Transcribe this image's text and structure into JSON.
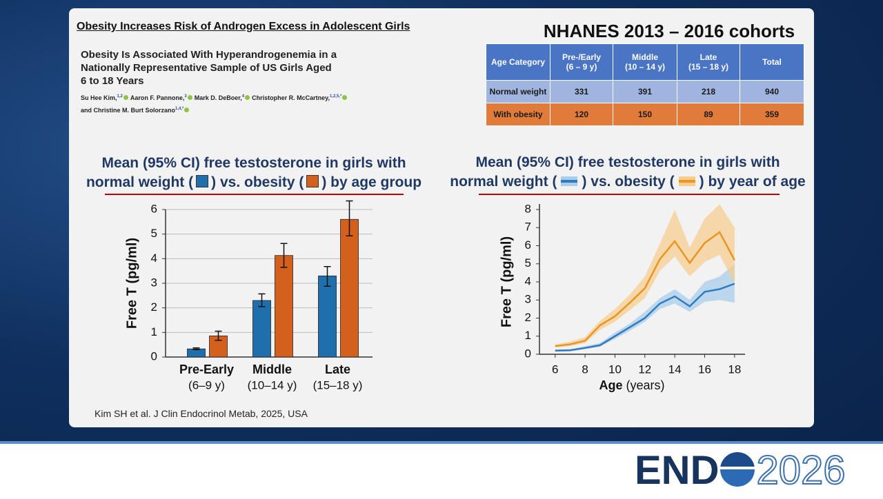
{
  "header": {
    "headline": "Obesity Increases Risk of Androgen Excess in Adolescent Girls",
    "paper_title": [
      "Obesity Is Associated With Hyperandrogenemia in a",
      "Nationally Representative Sample of US Girls Aged",
      "6 to 18 Years"
    ],
    "authors": [
      {
        "name": "Su Hee Kim,",
        "sup": "1,2"
      },
      {
        "name": "Aaron F. Pannone,",
        "sup": "3"
      },
      {
        "name": "Mark D. DeBoer,",
        "sup": "4"
      },
      {
        "name": "Christopher R. McCartney,",
        "sup": "1,2,5,*"
      },
      {
        "name": "and Christine M. Burt Solorzano",
        "sup": "1,4,*"
      }
    ]
  },
  "table": {
    "title": "NHANES 2013 – 2016 cohorts",
    "columns": [
      [
        "Age Category"
      ],
      [
        "Pre-/Early",
        "(6 – 9 y)"
      ],
      [
        "Middle",
        "(10 – 14 y)"
      ],
      [
        "Late",
        "(15 – 18 y)"
      ],
      [
        "Total"
      ]
    ],
    "rows": [
      [
        "Normal weight",
        331,
        391,
        218,
        940
      ],
      [
        "With obesity",
        120,
        150,
        89,
        359
      ]
    ]
  },
  "chart_data": [
    {
      "type": "bar",
      "title": [
        "Mean (95% CI) free testosterone in girls with",
        "normal weight (",
        ") vs. obesity (",
        ") by age group"
      ],
      "ylabel": "Free T (pg/ml)",
      "categories": [
        "Pre-Early",
        "Middle",
        "Late"
      ],
      "category_ranges": [
        "(6–9 y)",
        "(10–14 y)",
        "(15–18 y)"
      ],
      "series": [
        {
          "color": "#1f6fad",
          "values": [
            0.33,
            2.3,
            3.3
          ],
          "lower": [
            0.3,
            2.05,
            2.88
          ],
          "upper": [
            0.37,
            2.57,
            3.68
          ]
        },
        {
          "color": "#d4601e",
          "values": [
            0.86,
            4.13,
            5.6
          ],
          "lower": [
            0.68,
            3.65,
            4.93
          ],
          "upper": [
            1.05,
            4.62,
            6.35
          ]
        }
      ],
      "ylim": [
        0,
        6
      ],
      "yticks": [
        0,
        1,
        2,
        3,
        4,
        5,
        6
      ],
      "grid": true
    },
    {
      "type": "line",
      "title": [
        "Mean (95% CI) free testosterone in girls with",
        "normal weight (",
        ") vs. obesity (",
        ") by year of age"
      ],
      "ylabel": "Free T (pg/ml)",
      "xlabel": [
        "Age",
        "(years)"
      ],
      "x": [
        6,
        7,
        8,
        9,
        10,
        11,
        12,
        13,
        14,
        15,
        16,
        17,
        18
      ],
      "series": [
        {
          "color": "#2e7bbf",
          "band_color": "#a9cdeb",
          "values": [
            0.2,
            0.22,
            0.35,
            0.5,
            1.0,
            1.5,
            2.0,
            2.8,
            3.2,
            2.65,
            3.45,
            3.6,
            3.9
          ],
          "lower": [
            0.15,
            0.17,
            0.28,
            0.42,
            0.85,
            1.3,
            1.8,
            2.5,
            2.8,
            2.35,
            2.9,
            3.0,
            2.85
          ],
          "upper": [
            0.26,
            0.28,
            0.45,
            0.62,
            1.2,
            1.7,
            2.35,
            3.1,
            3.6,
            3.0,
            4.0,
            4.3,
            5.0
          ]
        },
        {
          "color": "#e8961e",
          "band_color": "#f6cd90",
          "values": [
            0.45,
            0.55,
            0.75,
            1.6,
            2.1,
            2.85,
            3.65,
            5.25,
            6.25,
            5.05,
            6.15,
            6.75,
            5.2
          ],
          "lower": [
            0.38,
            0.45,
            0.62,
            1.35,
            1.8,
            2.45,
            3.1,
            4.6,
            5.4,
            4.3,
            5.1,
            5.5,
            3.9
          ],
          "upper": [
            0.55,
            0.7,
            0.95,
            1.85,
            2.5,
            3.3,
            4.3,
            6.1,
            8.0,
            5.9,
            7.5,
            8.3,
            7.0
          ]
        }
      ],
      "xlim": [
        4.95,
        18.7
      ],
      "xticks": [
        6,
        8,
        10,
        12,
        14,
        16,
        18
      ],
      "ylim": [
        0,
        8
      ],
      "yticks": [
        0,
        1,
        2,
        3,
        4,
        5,
        6,
        7,
        8
      ],
      "grid": false
    }
  ],
  "citation": "Kim SH et al. J Clin Endocrinol Metab, 2025, USA",
  "logo": {
    "left": "END",
    "right": "2026"
  }
}
